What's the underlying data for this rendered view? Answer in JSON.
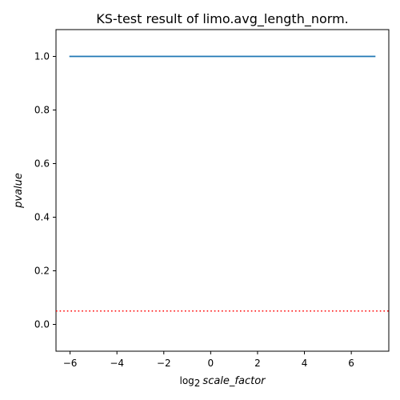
{
  "chart_data": {
    "type": "line",
    "title": "KS-test result of limo.avg_length_norm.",
    "xlabel": {
      "prefix": "log",
      "subscript": "2",
      "italic": "scale_factor"
    },
    "ylabel": "pvalue",
    "xlim": [
      -6.6,
      7.6
    ],
    "ylim": [
      -0.1,
      1.1
    ],
    "xticks": [
      -6,
      -4,
      -2,
      0,
      2,
      4,
      6
    ],
    "xtick_labels": [
      "−6",
      "−4",
      "−2",
      "0",
      "2",
      "4",
      "6"
    ],
    "yticks": [
      0.0,
      0.2,
      0.4,
      0.6,
      0.8,
      1.0
    ],
    "ytick_labels": [
      "0.0",
      "0.2",
      "0.4",
      "0.6",
      "0.8",
      "1.0"
    ],
    "series": [
      {
        "name": "pvalue",
        "color": "#1f77b4",
        "style": "solid",
        "x": [
          -6,
          -5,
          -4,
          -3,
          -2,
          -1,
          0,
          1,
          2,
          3,
          4,
          5,
          6,
          7
        ],
        "y": [
          1,
          1,
          1,
          1,
          1,
          1,
          1,
          1,
          1,
          1,
          1,
          1,
          1,
          1
        ]
      }
    ],
    "reference_lines": [
      {
        "name": "significance-threshold",
        "axis": "y",
        "value": 0.05,
        "color": "#ff0000",
        "style": "dotted"
      }
    ],
    "grid": false
  }
}
